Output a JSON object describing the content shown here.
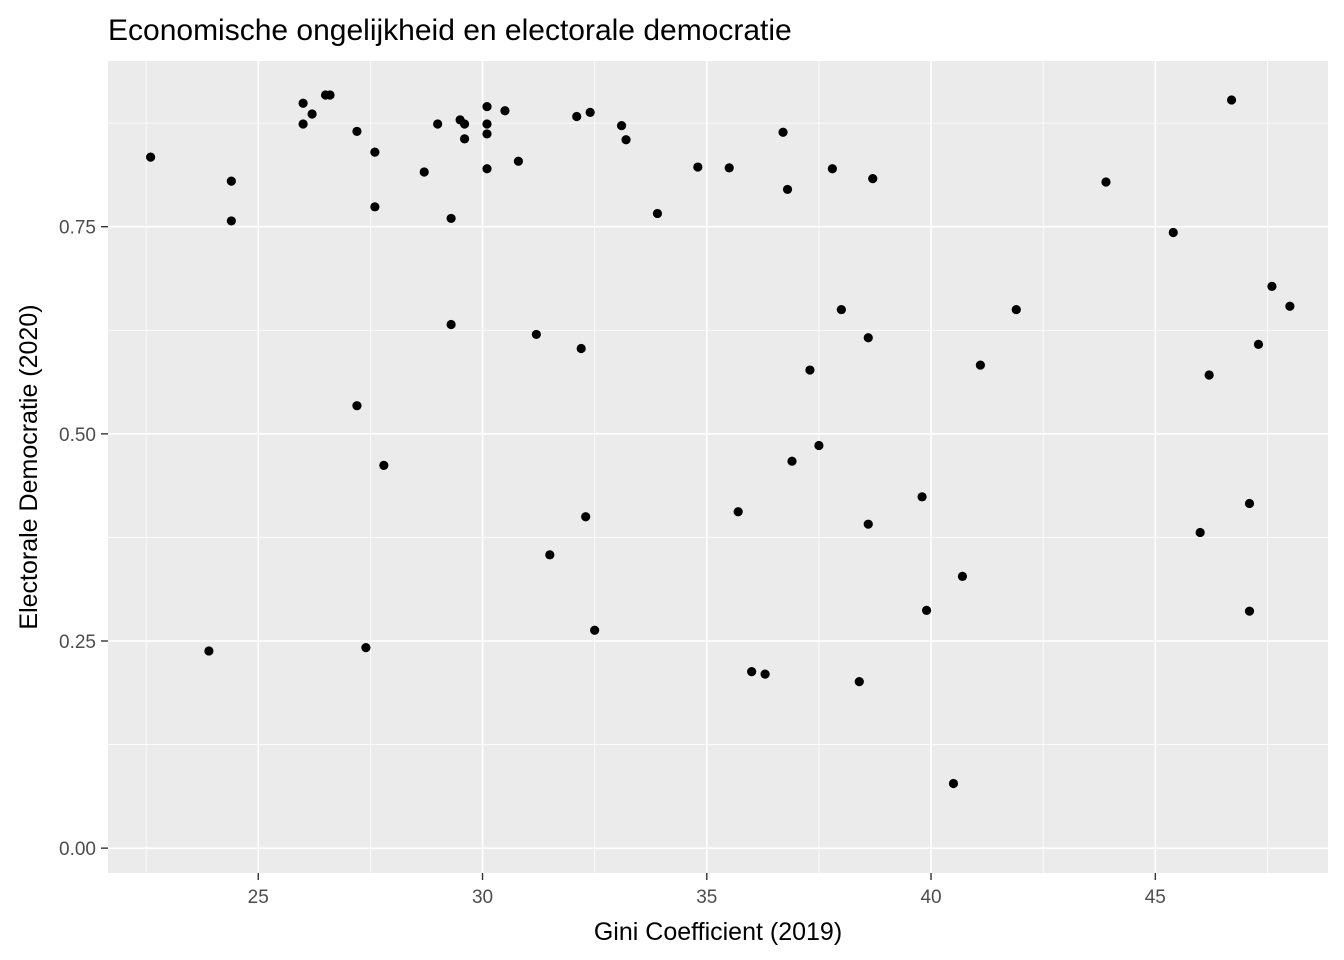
{
  "chart_data": {
    "type": "scatter",
    "title": "Economische ongelijkheid en electorale democratie",
    "xlabel": "Gini Coefficient (2019)",
    "ylabel": "Electorale Democratie (2020)",
    "xlim": [
      21.65,
      48.85
    ],
    "ylim": [
      -0.03,
      0.95
    ],
    "x_ticks": [
      25,
      30,
      35,
      40,
      45
    ],
    "x_tick_labels": [
      "25",
      "30",
      "35",
      "40",
      "45"
    ],
    "y_ticks": [
      0.0,
      0.25,
      0.5,
      0.75
    ],
    "y_tick_labels": [
      "0.00",
      "0.25",
      "0.50",
      "0.75"
    ],
    "grid": true,
    "legend": "none",
    "point_color": "#000000",
    "panel_color": "#ebebeb",
    "x": [
      22.6,
      23.9,
      24.4,
      24.4,
      26.0,
      26.0,
      26.2,
      26.5,
      26.6,
      27.2,
      27.2,
      27.4,
      27.6,
      27.6,
      27.8,
      28.7,
      29.0,
      29.3,
      29.3,
      29.5,
      29.6,
      29.6,
      30.1,
      30.1,
      30.1,
      30.1,
      30.5,
      30.8,
      31.2,
      31.5,
      32.1,
      32.2,
      32.3,
      32.4,
      32.5,
      33.1,
      33.2,
      33.9,
      34.8,
      35.5,
      35.7,
      36.0,
      36.3,
      36.7,
      36.8,
      36.9,
      37.3,
      37.5,
      37.8,
      38.0,
      38.4,
      38.6,
      38.6,
      38.7,
      39.8,
      39.9,
      40.5,
      40.7,
      41.1,
      41.9,
      43.9,
      45.4,
      46.0,
      46.2,
      46.7,
      47.1,
      47.1,
      47.3,
      47.6,
      48.0
    ],
    "y": [
      0.834,
      0.238,
      0.805,
      0.757,
      0.899,
      0.874,
      0.886,
      0.909,
      0.909,
      0.865,
      0.534,
      0.242,
      0.84,
      0.774,
      0.462,
      0.816,
      0.874,
      0.76,
      0.632,
      0.879,
      0.874,
      0.856,
      0.895,
      0.874,
      0.862,
      0.82,
      0.89,
      0.829,
      0.62,
      0.354,
      0.883,
      0.603,
      0.4,
      0.888,
      0.263,
      0.872,
      0.855,
      0.766,
      0.822,
      0.821,
      0.406,
      0.213,
      0.21,
      0.864,
      0.795,
      0.467,
      0.577,
      0.486,
      0.82,
      0.65,
      0.201,
      0.391,
      0.616,
      0.808,
      0.424,
      0.287,
      0.078,
      0.328,
      0.583,
      0.65,
      0.804,
      0.743,
      0.381,
      0.571,
      0.903,
      0.416,
      0.286,
      0.608,
      0.678,
      0.654
    ]
  }
}
